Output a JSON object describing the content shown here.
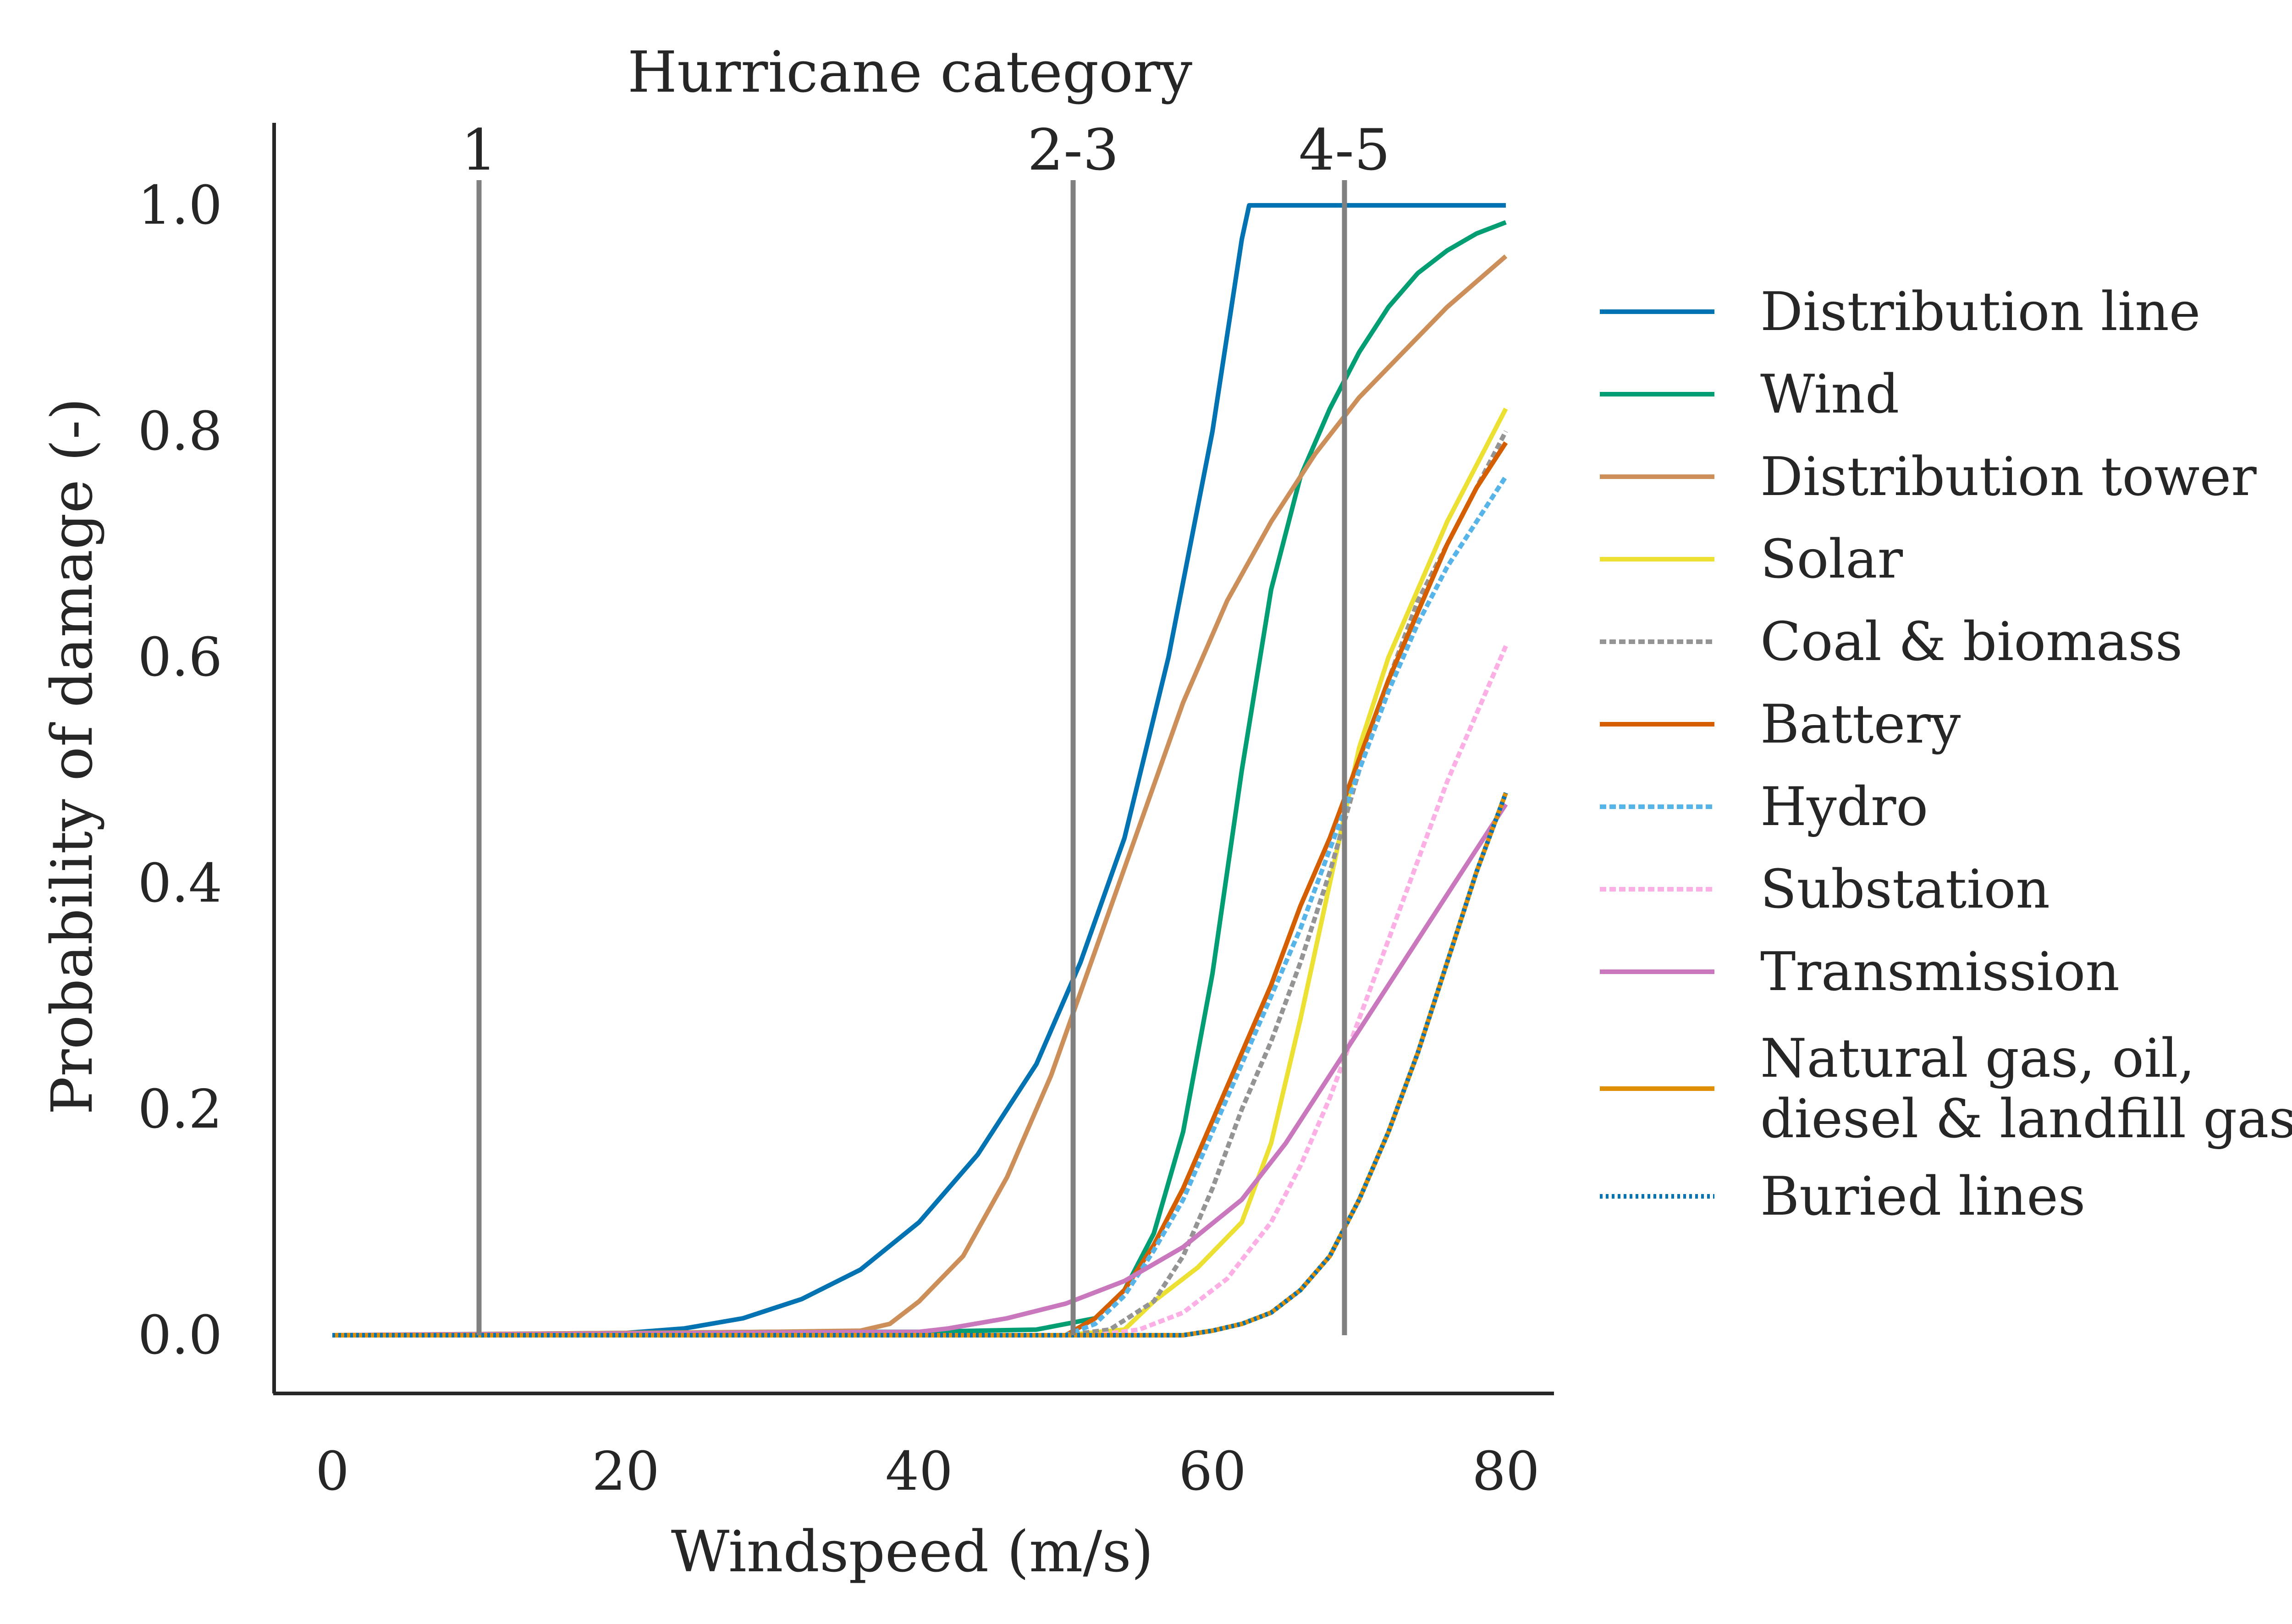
{
  "chart_data": {
    "type": "line",
    "title": "Hurricane category",
    "xlabel": "Windspeed (m/s)",
    "ylabel": "Probability of damage (-)",
    "xlim": [
      -4,
      83
    ],
    "ylim": [
      -0.05,
      1.07
    ],
    "xticks": [
      0,
      20,
      40,
      60,
      80
    ],
    "xtick_labels": [
      "0",
      "20",
      "40",
      "60",
      "80"
    ],
    "yticks": [
      0.0,
      0.2,
      0.4,
      0.6,
      0.8,
      1.0
    ],
    "ytick_labels": [
      "0.0",
      "0.2",
      "0.4",
      "0.6",
      "0.8",
      "1.0"
    ],
    "grid": false,
    "legend_position": "right, outside",
    "categories": [
      {
        "label": "1",
        "x": 10
      },
      {
        "label": "2-3",
        "x": 50.5
      },
      {
        "label": "4-5",
        "x": 69
      }
    ],
    "category_line_color": "#808080",
    "series": [
      {
        "name": "Distribution line",
        "color": "#0173b2",
        "dash": "solid",
        "points": [
          [
            0,
            0
          ],
          [
            10,
            0
          ],
          [
            20,
            0.002
          ],
          [
            24,
            0.006
          ],
          [
            28,
            0.015
          ],
          [
            32,
            0.032
          ],
          [
            36,
            0.058
          ],
          [
            40,
            0.1
          ],
          [
            44,
            0.16
          ],
          [
            48,
            0.24
          ],
          [
            51,
            0.33
          ],
          [
            54,
            0.44
          ],
          [
            57,
            0.6
          ],
          [
            60,
            0.8
          ],
          [
            62,
            0.97
          ],
          [
            62.5,
            1
          ],
          [
            80,
            1
          ]
        ]
      },
      {
        "name": "Wind",
        "color": "#029e73",
        "dash": "solid",
        "points": [
          [
            0,
            0
          ],
          [
            30,
            0.003
          ],
          [
            40,
            0.003
          ],
          [
            48,
            0.005
          ],
          [
            52,
            0.015
          ],
          [
            54,
            0.04
          ],
          [
            56,
            0.09
          ],
          [
            58,
            0.18
          ],
          [
            60,
            0.32
          ],
          [
            62,
            0.5
          ],
          [
            64,
            0.66
          ],
          [
            66,
            0.76
          ],
          [
            68,
            0.82
          ],
          [
            70,
            0.87
          ],
          [
            72,
            0.91
          ],
          [
            74,
            0.94
          ],
          [
            76,
            0.96
          ],
          [
            78,
            0.975
          ],
          [
            80,
            0.985
          ]
        ]
      },
      {
        "name": "Distribution tower",
        "color": "#cc8f5a",
        "dash": "solid",
        "points": [
          [
            0,
            0
          ],
          [
            30,
            0.003
          ],
          [
            36,
            0.004
          ],
          [
            38,
            0.01
          ],
          [
            40,
            0.03
          ],
          [
            43,
            0.07
          ],
          [
            46,
            0.14
          ],
          [
            49,
            0.23
          ],
          [
            52,
            0.34
          ],
          [
            55,
            0.45
          ],
          [
            58,
            0.56
          ],
          [
            61,
            0.65
          ],
          [
            64,
            0.72
          ],
          [
            67,
            0.78
          ],
          [
            70,
            0.83
          ],
          [
            73,
            0.87
          ],
          [
            76,
            0.91
          ],
          [
            80,
            0.955
          ]
        ]
      },
      {
        "name": "Solar",
        "color": "#ece133",
        "dash": "solid",
        "points": [
          [
            0,
            0
          ],
          [
            50,
            0
          ],
          [
            54,
            0.005
          ],
          [
            56,
            0.03
          ],
          [
            59,
            0.06
          ],
          [
            62,
            0.1
          ],
          [
            64,
            0.17
          ],
          [
            66,
            0.28
          ],
          [
            68,
            0.4
          ],
          [
            70,
            0.52
          ],
          [
            72,
            0.6
          ],
          [
            74,
            0.66
          ],
          [
            76,
            0.72
          ],
          [
            78,
            0.77
          ],
          [
            80,
            0.82
          ]
        ]
      },
      {
        "name": "Coal & biomass",
        "color": "#949494",
        "dash": "14,7",
        "points": [
          [
            0,
            0
          ],
          [
            50,
            0
          ],
          [
            53,
            0.005
          ],
          [
            56,
            0.03
          ],
          [
            58,
            0.07
          ],
          [
            60,
            0.13
          ],
          [
            62,
            0.2
          ],
          [
            64,
            0.26
          ],
          [
            66,
            0.33
          ],
          [
            68,
            0.41
          ],
          [
            70,
            0.5
          ],
          [
            72,
            0.58
          ],
          [
            74,
            0.65
          ],
          [
            76,
            0.7
          ],
          [
            78,
            0.75
          ],
          [
            80,
            0.8
          ]
        ]
      },
      {
        "name": "Battery",
        "color": "#d55e00",
        "dash": "solid",
        "points": [
          [
            0,
            0
          ],
          [
            50,
            0
          ],
          [
            52,
            0.015
          ],
          [
            54,
            0.04
          ],
          [
            56,
            0.08
          ],
          [
            58,
            0.13
          ],
          [
            60,
            0.19
          ],
          [
            62,
            0.25
          ],
          [
            64,
            0.31
          ],
          [
            66,
            0.38
          ],
          [
            68,
            0.44
          ],
          [
            70,
            0.51
          ],
          [
            72,
            0.58
          ],
          [
            74,
            0.64
          ],
          [
            76,
            0.7
          ],
          [
            78,
            0.75
          ],
          [
            80,
            0.79
          ]
        ]
      },
      {
        "name": "Hydro",
        "color": "#56b4e9",
        "dash": "14,7",
        "points": [
          [
            0,
            0
          ],
          [
            50,
            0
          ],
          [
            52,
            0.01
          ],
          [
            54,
            0.035
          ],
          [
            56,
            0.075
          ],
          [
            58,
            0.12
          ],
          [
            60,
            0.18
          ],
          [
            62,
            0.24
          ],
          [
            64,
            0.3
          ],
          [
            66,
            0.36
          ],
          [
            68,
            0.43
          ],
          [
            70,
            0.5
          ],
          [
            72,
            0.57
          ],
          [
            74,
            0.63
          ],
          [
            76,
            0.68
          ],
          [
            78,
            0.72
          ],
          [
            80,
            0.76
          ]
        ]
      },
      {
        "name": "Substation",
        "color": "#fbafe4",
        "dash": "14,7",
        "points": [
          [
            0,
            0
          ],
          [
            52,
            0
          ],
          [
            55,
            0.005
          ],
          [
            58,
            0.02
          ],
          [
            61,
            0.05
          ],
          [
            64,
            0.1
          ],
          [
            66,
            0.15
          ],
          [
            68,
            0.21
          ],
          [
            70,
            0.28
          ],
          [
            72,
            0.35
          ],
          [
            74,
            0.42
          ],
          [
            76,
            0.49
          ],
          [
            78,
            0.55
          ],
          [
            80,
            0.61
          ]
        ]
      },
      {
        "name": "Transmission",
        "color": "#ca78bd",
        "dash": "solid",
        "points": [
          [
            0,
            0
          ],
          [
            40,
            0.003
          ],
          [
            42,
            0.006
          ],
          [
            46,
            0.015
          ],
          [
            50,
            0.028
          ],
          [
            54,
            0.048
          ],
          [
            58,
            0.078
          ],
          [
            62,
            0.12
          ],
          [
            65,
            0.17
          ],
          [
            68,
            0.23
          ],
          [
            71,
            0.29
          ],
          [
            74,
            0.35
          ],
          [
            77,
            0.41
          ],
          [
            80,
            0.47
          ]
        ]
      },
      {
        "name": "Natural gas, oil,\ndiesel & landfill gas",
        "color": "#de8f05",
        "dash": "solid",
        "points": [
          [
            0,
            0
          ],
          [
            58,
            0
          ],
          [
            60,
            0.004
          ],
          [
            62,
            0.01
          ],
          [
            64,
            0.02
          ],
          [
            66,
            0.04
          ],
          [
            68,
            0.07
          ],
          [
            70,
            0.12
          ],
          [
            72,
            0.18
          ],
          [
            74,
            0.25
          ],
          [
            76,
            0.33
          ],
          [
            78,
            0.41
          ],
          [
            80,
            0.48
          ]
        ]
      },
      {
        "name": "Buried lines",
        "color": "#0173b2",
        "dash": "6,7",
        "points": [
          [
            0,
            0
          ],
          [
            58,
            0
          ],
          [
            60,
            0.004
          ],
          [
            62,
            0.01
          ],
          [
            64,
            0.02
          ],
          [
            66,
            0.04
          ],
          [
            68,
            0.07
          ],
          [
            70,
            0.12
          ],
          [
            72,
            0.18
          ],
          [
            74,
            0.25
          ],
          [
            76,
            0.33
          ],
          [
            78,
            0.41
          ],
          [
            80,
            0.48
          ]
        ]
      }
    ]
  }
}
